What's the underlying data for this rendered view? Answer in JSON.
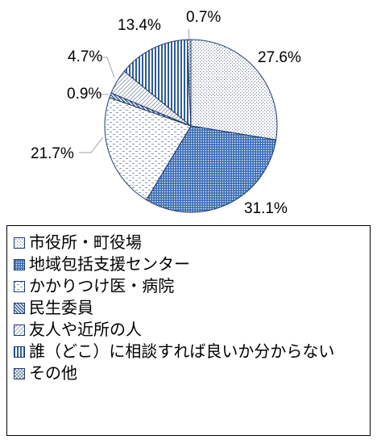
{
  "chart_data": {
    "type": "pie",
    "categories": [
      "市役所・町役場",
      "地域包括支援センター",
      "かかりつけ医・病院",
      "民生委員",
      "友人や近所の人",
      "誰（どこ）に相談すれば良いか分からない",
      "その他"
    ],
    "values": [
      27.6,
      31.1,
      21.7,
      0.9,
      4.7,
      13.4,
      0.7
    ],
    "labels": [
      "27.6%",
      "31.1%",
      "21.7%",
      "0.9%",
      "4.7%",
      "13.4%",
      "0.7%"
    ],
    "legend_position": "bottom",
    "start_angle_deg": 0,
    "direction": "clockwise",
    "colors": {
      "stroke": "#1f3a6b",
      "pattern": [
        "#7f8fa6",
        "#3d6fb6",
        "#8a9ab0",
        "#2a4f8a",
        "#8a9ab0",
        "#2f5c9a",
        "#6f84a0"
      ]
    }
  },
  "legend": {
    "items": [
      {
        "label": "市役所・町役場",
        "pattern": "dots-fine"
      },
      {
        "label": "地域包括支援センター",
        "pattern": "dots-dense"
      },
      {
        "label": "かかりつけ医・病院",
        "pattern": "dashes"
      },
      {
        "label": "民生委員",
        "pattern": "diag-down"
      },
      {
        "label": "友人や近所の人",
        "pattern": "diag-up"
      },
      {
        "label": "誰（どこ）に相談すれば良いか分からない",
        "pattern": "vertical"
      },
      {
        "label": "その他",
        "pattern": "cross"
      }
    ]
  }
}
